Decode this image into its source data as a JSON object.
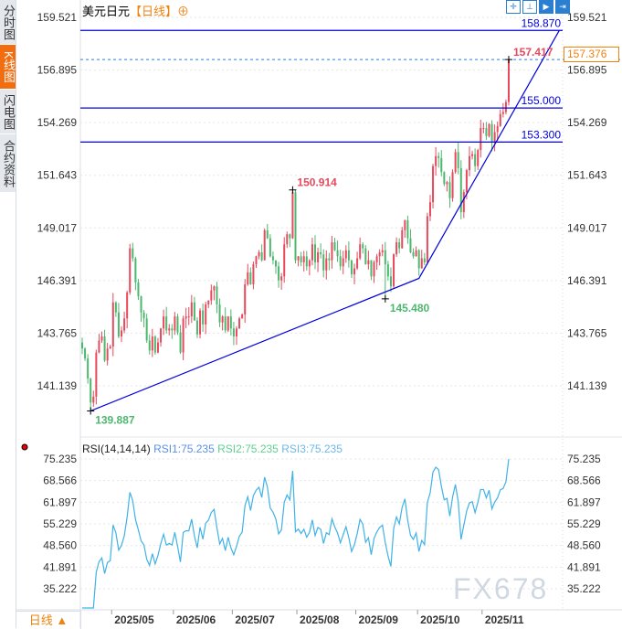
{
  "sidebar": {
    "tabs": [
      {
        "label": "分时图",
        "active": false
      },
      {
        "label": "K线图",
        "active": true
      },
      {
        "label": "闪电图",
        "active": false
      },
      {
        "label": "合约资料",
        "active": false
      }
    ]
  },
  "header": {
    "symbol": "美元日元",
    "period": "【日线】",
    "add_icon": "⊕",
    "tools": [
      "crosshair-icon",
      "measure-icon",
      "play-icon",
      "exit-icon"
    ]
  },
  "current_price": "157.376",
  "period_button": "日线 ▲",
  "watermark": "FX678",
  "colors": {
    "up": "#e8495c",
    "down": "#4cb86e",
    "line": "#0000dd",
    "rsi": "#3fb2e6",
    "accent": "#f0820f"
  },
  "chart_data": [
    {
      "type": "candlestick",
      "title": "美元日元",
      "ylim": [
        139.4,
        160.4
      ],
      "y_ticks": [
        "159.521",
        "156.895",
        "154.269",
        "151.643",
        "149.017",
        "146.391",
        "143.765",
        "141.139"
      ],
      "x_ticks": [
        "2025/05",
        "2025/06",
        "2025/07",
        "2025/08",
        "2025/09",
        "2025/10",
        "2025/11"
      ],
      "month_lengths": [
        11,
        22,
        21,
        23,
        21,
        22,
        23,
        10
      ],
      "closes": [
        143.0,
        142.5,
        141.5,
        140.3,
        140.6,
        142.8,
        143.4,
        143.6,
        142.4,
        143.0,
        143.1,
        145.3,
        144.8,
        143.6,
        143.9,
        144.5,
        145.8,
        148.0,
        147.5,
        146.3,
        145.6,
        144.8,
        144.5,
        143.4,
        142.9,
        143.6,
        142.8,
        143.3,
        144.0,
        144.6,
        143.9,
        144.0,
        143.9,
        144.6,
        143.8,
        142.8,
        144.5,
        144.6,
        144.6,
        145.3,
        144.4,
        143.7,
        144.9,
        144.2,
        145.2,
        145.4,
        145.9,
        146.1,
        145.2,
        144.3,
        144.6,
        143.9,
        144.6,
        144.0,
        143.6,
        144.0,
        144.5,
        144.7,
        146.2,
        146.8,
        146.2,
        147.2,
        147.6,
        147.8,
        147.4,
        148.9,
        148.5,
        147.6,
        147.4,
        147.1,
        146.4,
        146.6,
        148.2,
        148.7,
        148.5,
        150.8,
        147.4,
        147.6,
        147.3,
        147.6,
        147.1,
        147.4,
        148.2,
        147.3,
        147.8,
        147.7,
        146.9,
        147.5,
        147.4,
        148.3,
        147.9,
        147.6,
        147.1,
        147.5,
        147.9,
        147.4,
        146.7,
        147.0,
        147.5,
        148.2,
        148.0,
        147.2,
        147.4,
        146.6,
        147.3,
        147.6,
        147.8,
        147.9,
        147.2,
        146.6,
        146.1,
        147.7,
        148.3,
        148.0,
        148.9,
        149.4,
        148.5,
        147.8,
        147.6,
        147.9,
        147.0,
        147.5,
        147.3,
        149.6,
        150.3,
        152.1,
        152.6,
        152.5,
        151.8,
        151.2,
        151.3,
        150.5,
        151.8,
        152.8,
        152.0,
        149.8,
        150.8,
        151.9,
        152.6,
        152.7,
        152.1,
        152.9,
        154.0,
        154.0,
        153.6,
        154.2,
        153.3,
        153.8,
        154.1,
        154.7,
        154.8,
        155.3,
        157.4
      ],
      "annotations": [
        {
          "label": "139.887",
          "value": 139.887,
          "index": 3,
          "color": "#4cb86e"
        },
        {
          "label": "150.914",
          "value": 150.914,
          "index": 75,
          "color": "#e8495c"
        },
        {
          "label": "145.480",
          "value": 145.48,
          "index": 108,
          "color": "#4cb86e"
        },
        {
          "label": "157.417",
          "value": 157.417,
          "index": 152,
          "color": "#e8495c"
        }
      ],
      "horizontal_lines": [
        {
          "label": "158.870",
          "value": 158.87
        },
        {
          "label": "155.000",
          "value": 155.0
        },
        {
          "label": "153.300",
          "value": 153.3
        }
      ],
      "dashed_line": 157.417,
      "trend_line": [
        {
          "index": 3,
          "value": 139.887
        },
        {
          "index": 120,
          "value": 146.5
        },
        {
          "index": 170,
          "value": 158.87
        }
      ]
    },
    {
      "type": "line",
      "title": "RSI(14,14,14)",
      "legend": [
        "RSI1:75.235",
        "RSI2:75.235",
        "RSI3:75.235"
      ],
      "legend_colors": [
        "#5a8fe8",
        "#5fcf8f",
        "#6ab8e8"
      ],
      "y_ticks": [
        "75.235",
        "68.566",
        "61.897",
        "55.229",
        "48.560",
        "41.891",
        "35.222"
      ],
      "last_value": 75.235
    }
  ]
}
